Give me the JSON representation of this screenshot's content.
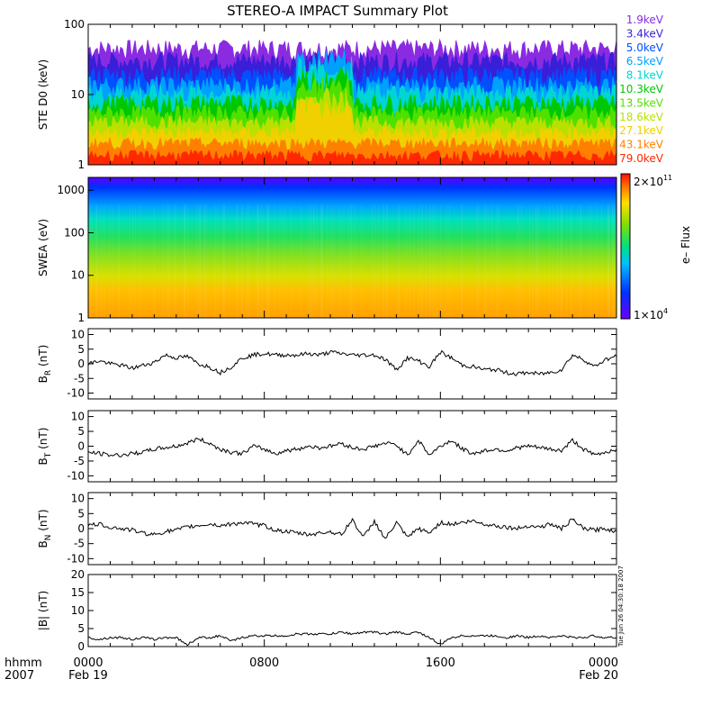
{
  "title": "STEREO-A IMPACT Summary Plot",
  "ste_legend": [
    {
      "label": "1.9keV",
      "color": "#8a2be2"
    },
    {
      "label": "3.4keV",
      "color": "#3a1fd8"
    },
    {
      "label": "5.0keV",
      "color": "#0050ff"
    },
    {
      "label": "6.5keV",
      "color": "#00a0ff"
    },
    {
      "label": "8.1keV",
      "color": "#00d4d4"
    },
    {
      "label": "10.3keV",
      "color": "#00c800"
    },
    {
      "label": "13.5keV",
      "color": "#50e000"
    },
    {
      "label": "18.6keV",
      "color": "#b8e000"
    },
    {
      "label": "27.1keV",
      "color": "#f0d000"
    },
    {
      "label": "43.1keV",
      "color": "#ff8000"
    },
    {
      "label": "79.0keV",
      "color": "#ff2800"
    }
  ],
  "colorbar": {
    "max_label": "2×10",
    "max_exp": "11",
    "min_label": "1×10",
    "min_exp": "4",
    "title": "e– Flux"
  },
  "time_axis": {
    "row1_label": "hhmm",
    "row2_label": "2007",
    "ticks": [
      {
        "top": "0000",
        "bottom": "Feb 19"
      },
      {
        "top": "0800",
        "bottom": ""
      },
      {
        "top": "1600",
        "bottom": ""
      },
      {
        "top": "0000",
        "bottom": "Feb 20"
      }
    ]
  },
  "timestamp": "Tue Jun 26 04:30:18 2007",
  "chart_data": [
    {
      "type": "line",
      "panel": "STE D0",
      "ylabel": "STE D0 (keV)",
      "yscale": "log",
      "ylim": [
        1,
        100
      ],
      "yticks": [
        "1",
        "10",
        "100"
      ],
      "xlim_hours": [
        0,
        24
      ],
      "series": [
        {
          "name": "1.9keV",
          "level_range": [
            30,
            60
          ]
        },
        {
          "name": "3.4keV",
          "level_range": [
            20,
            40
          ]
        },
        {
          "name": "5.0keV",
          "level_range": [
            12,
            25
          ]
        },
        {
          "name": "6.5keV",
          "level_range": [
            9,
            18
          ]
        },
        {
          "name": "8.1keV",
          "level_range": [
            7,
            14
          ]
        },
        {
          "name": "10.3keV",
          "level_range": [
            5,
            10
          ]
        },
        {
          "name": "13.5keV",
          "level_range": [
            4,
            7
          ]
        },
        {
          "name": "18.6keV",
          "level_range": [
            3,
            5
          ]
        },
        {
          "name": "27.1keV",
          "level_range": [
            2.2,
            3.5
          ]
        },
        {
          "name": "43.1keV",
          "level_range": [
            1.6,
            2.4
          ]
        },
        {
          "name": "79.0keV",
          "level_range": [
            1.1,
            1.6
          ]
        }
      ],
      "enhancement_hours": [
        9.5,
        12.0
      ]
    },
    {
      "type": "heatmap",
      "panel": "SWEA",
      "ylabel": "SWEA (eV)",
      "yscale": "log",
      "ylim": [
        1,
        2000
      ],
      "yticks": [
        "1",
        "10",
        "100",
        "1000"
      ],
      "zlim": [
        10000,
        200000000000
      ],
      "z_label": "e– Flux",
      "xlim_hours": [
        0,
        24
      ]
    },
    {
      "type": "line",
      "panel": "BR",
      "ylabel_main": "B",
      "ylabel_sub": "R",
      "ylabel_unit": "(nT)",
      "ylim": [
        -12,
        12
      ],
      "yticks": [
        "10",
        "5",
        "0",
        "-5",
        "-10"
      ],
      "x_hours": [
        0,
        0.5,
        1,
        1.5,
        2,
        2.5,
        3,
        3.5,
        4,
        4.5,
        5,
        5.5,
        6,
        6.5,
        7,
        7.5,
        8,
        8.5,
        9,
        9.5,
        10,
        10.5,
        11,
        11.5,
        12,
        12.5,
        13,
        13.5,
        14,
        14.5,
        15,
        15.5,
        16,
        16.5,
        17,
        17.5,
        18,
        18.5,
        19,
        19.5,
        20,
        20.5,
        21,
        21.5,
        22,
        22.5,
        23,
        23.5,
        24
      ],
      "values": [
        0,
        1,
        0,
        -0.5,
        -1.5,
        -0.5,
        0.5,
        3,
        2,
        2.5,
        0,
        -1,
        -3,
        -1,
        2,
        3,
        3.5,
        3,
        3,
        3,
        3.5,
        3,
        4,
        3.5,
        3,
        3,
        3,
        1.5,
        -2,
        2,
        1,
        -1,
        4,
        2,
        -0.5,
        -1,
        -2,
        -2,
        -3,
        -3.5,
        -3,
        -3.5,
        -3,
        -2,
        3,
        1.5,
        -1,
        1.5,
        2.5
      ]
    },
    {
      "type": "line",
      "panel": "BT",
      "ylabel_main": "B",
      "ylabel_sub": "T",
      "ylabel_unit": "(nT)",
      "ylim": [
        -12,
        12
      ],
      "yticks": [
        "10",
        "5",
        "0",
        "-5",
        "-10"
      ],
      "x_hours": [
        0,
        0.5,
        1,
        1.5,
        2,
        2.5,
        3,
        3.5,
        4,
        4.5,
        5,
        5.5,
        6,
        6.5,
        7,
        7.5,
        8,
        8.5,
        9,
        9.5,
        10,
        10.5,
        11,
        11.5,
        12,
        12.5,
        13,
        13.5,
        14,
        14.5,
        15,
        15.5,
        16,
        16.5,
        17,
        17.5,
        18,
        18.5,
        19,
        19.5,
        20,
        20.5,
        21,
        21.5,
        22,
        22.5,
        23,
        23.5,
        24
      ],
      "values": [
        -2,
        -2.5,
        -3,
        -3,
        -2.5,
        -2,
        -1,
        -0.5,
        0,
        1,
        2.5,
        1,
        -1,
        -2,
        -2.5,
        0,
        -1,
        -2.5,
        -1.5,
        -1,
        0,
        -0.5,
        0,
        1,
        -0.5,
        -1,
        0,
        1,
        0.5,
        -3,
        2,
        -3,
        0,
        2,
        -1,
        -2.5,
        -1.5,
        -1,
        -1.5,
        -0.5,
        0,
        -0.5,
        -1,
        -1.5,
        2,
        -1,
        -3,
        -2,
        -1
      ]
    },
    {
      "type": "line",
      "panel": "BN",
      "ylabel_main": "B",
      "ylabel_sub": "N",
      "ylabel_unit": "(nT)",
      "ylim": [
        -12,
        12
      ],
      "yticks": [
        "10",
        "5",
        "0",
        "-5",
        "-10"
      ],
      "x_hours": [
        0,
        0.5,
        1,
        1.5,
        2,
        2.5,
        3,
        3.5,
        4,
        4.5,
        5,
        5.5,
        6,
        6.5,
        7,
        7.5,
        8,
        8.5,
        9,
        9.5,
        10,
        10.5,
        11,
        11.5,
        12,
        12.5,
        13,
        13.5,
        14,
        14.5,
        15,
        15.5,
        16,
        16.5,
        17,
        17.5,
        18,
        18.5,
        19,
        19.5,
        20,
        20.5,
        21,
        21.5,
        22,
        22.5,
        23,
        23.5,
        24
      ],
      "values": [
        1,
        1.5,
        0.5,
        0,
        -0.5,
        -1.5,
        -2,
        -1,
        -0.5,
        0.5,
        1,
        1.5,
        1,
        1.5,
        2,
        1.5,
        1,
        -0.5,
        -1,
        -1.5,
        -2,
        -1.5,
        -1,
        -2,
        3,
        -3,
        2.5,
        -3.5,
        2,
        -3,
        0,
        -1.5,
        2,
        1.5,
        2,
        2.5,
        1.5,
        1,
        0.5,
        0,
        1,
        0.5,
        1.5,
        0,
        3,
        0,
        -0.5,
        0,
        -1
      ]
    },
    {
      "type": "line",
      "panel": "B",
      "ylabel": "|B| (nT)",
      "ylim": [
        0,
        20
      ],
      "yticks": [
        "20",
        "15",
        "10",
        "5",
        "0"
      ],
      "x_hours": [
        0,
        0.5,
        1,
        1.5,
        2,
        2.5,
        3,
        3.5,
        4,
        4.5,
        5,
        5.5,
        6,
        6.5,
        7,
        7.5,
        8,
        8.5,
        9,
        9.5,
        10,
        10.5,
        11,
        11.5,
        12,
        12.5,
        13,
        13.5,
        14,
        14.5,
        15,
        15.5,
        16,
        16.5,
        17,
        17.5,
        18,
        18.5,
        19,
        19.5,
        20,
        20.5,
        21,
        21.5,
        22,
        22.5,
        23,
        23.5,
        24
      ],
      "values": [
        2.5,
        2,
        2.5,
        2.5,
        2,
        2.5,
        2,
        2.5,
        2.5,
        0.5,
        2.5,
        2.5,
        3,
        1.5,
        2.5,
        3,
        3,
        3,
        3,
        3.5,
        3.5,
        3.5,
        3.5,
        4,
        3.5,
        4,
        4,
        3.5,
        4,
        3.5,
        4,
        2.5,
        0.5,
        2.5,
        3,
        3,
        3,
        3,
        2.5,
        3,
        2.5,
        3,
        2.5,
        3,
        2.5,
        2.5,
        3,
        2.5,
        2.5
      ]
    }
  ]
}
